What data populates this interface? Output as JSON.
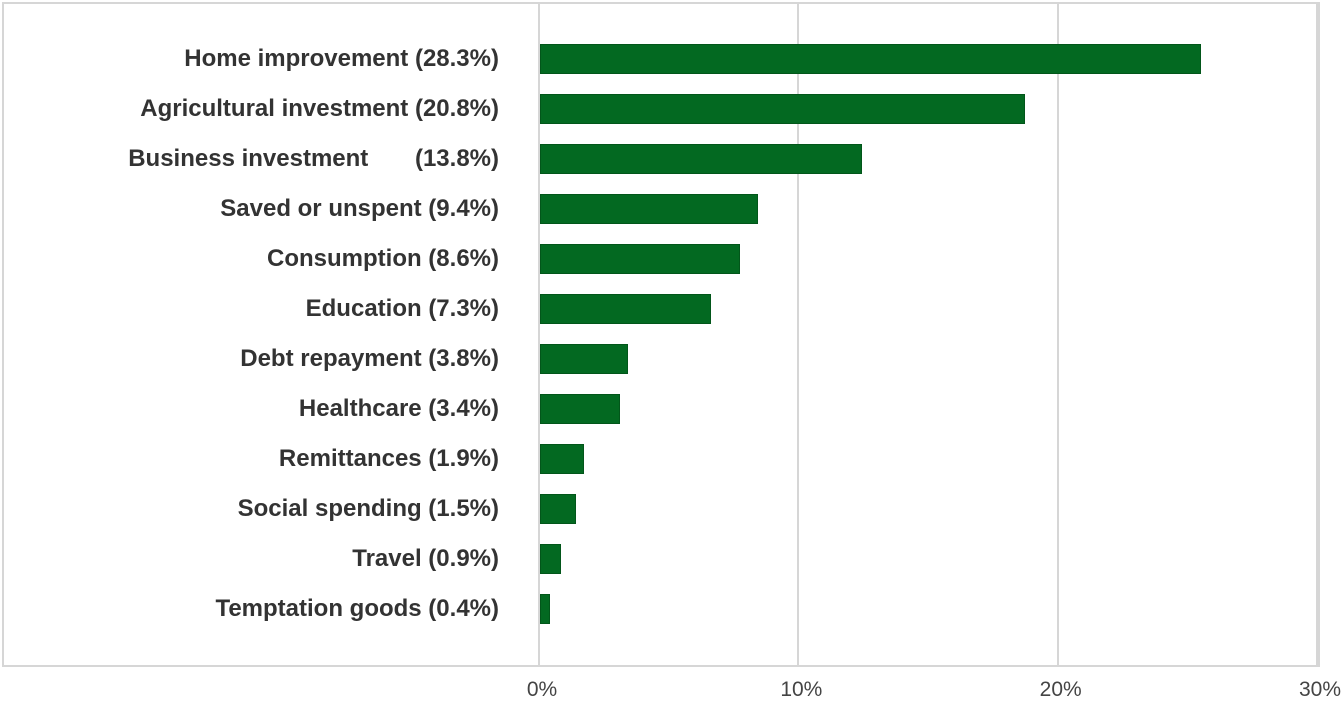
{
  "chart_data": {
    "type": "bar",
    "orientation": "horizontal",
    "title": "",
    "xlabel": "",
    "ylabel": "",
    "xlim": [
      0,
      30
    ],
    "grid": true,
    "legend": null,
    "bar_color": "#036921",
    "categories": [
      "Home improvement (28.3%)",
      "Agricultural investment (20.8%)",
      "Business investment       (13.8%)",
      "Saved or unspent (9.4%)",
      "Consumption (8.6%)",
      "Education (7.3%)",
      "Debt repayment (3.8%)",
      "Healthcare (3.4%)",
      "Remittances (1.9%)",
      "Social spending (1.5%)",
      "Travel (0.9%)",
      "Temptation goods (0.4%)"
    ],
    "values": [
      28.3,
      20.8,
      13.8,
      9.4,
      8.6,
      7.3,
      3.8,
      3.4,
      1.9,
      1.5,
      0.9,
      0.4
    ],
    "rendered_bar_lengths_pct_of_axis": [
      25.5,
      18.7,
      12.4,
      8.4,
      7.7,
      6.6,
      3.4,
      3.1,
      1.7,
      1.4,
      0.8,
      0.4
    ],
    "x_ticks": [
      "0%",
      "10%",
      "20%",
      "30%"
    ]
  }
}
